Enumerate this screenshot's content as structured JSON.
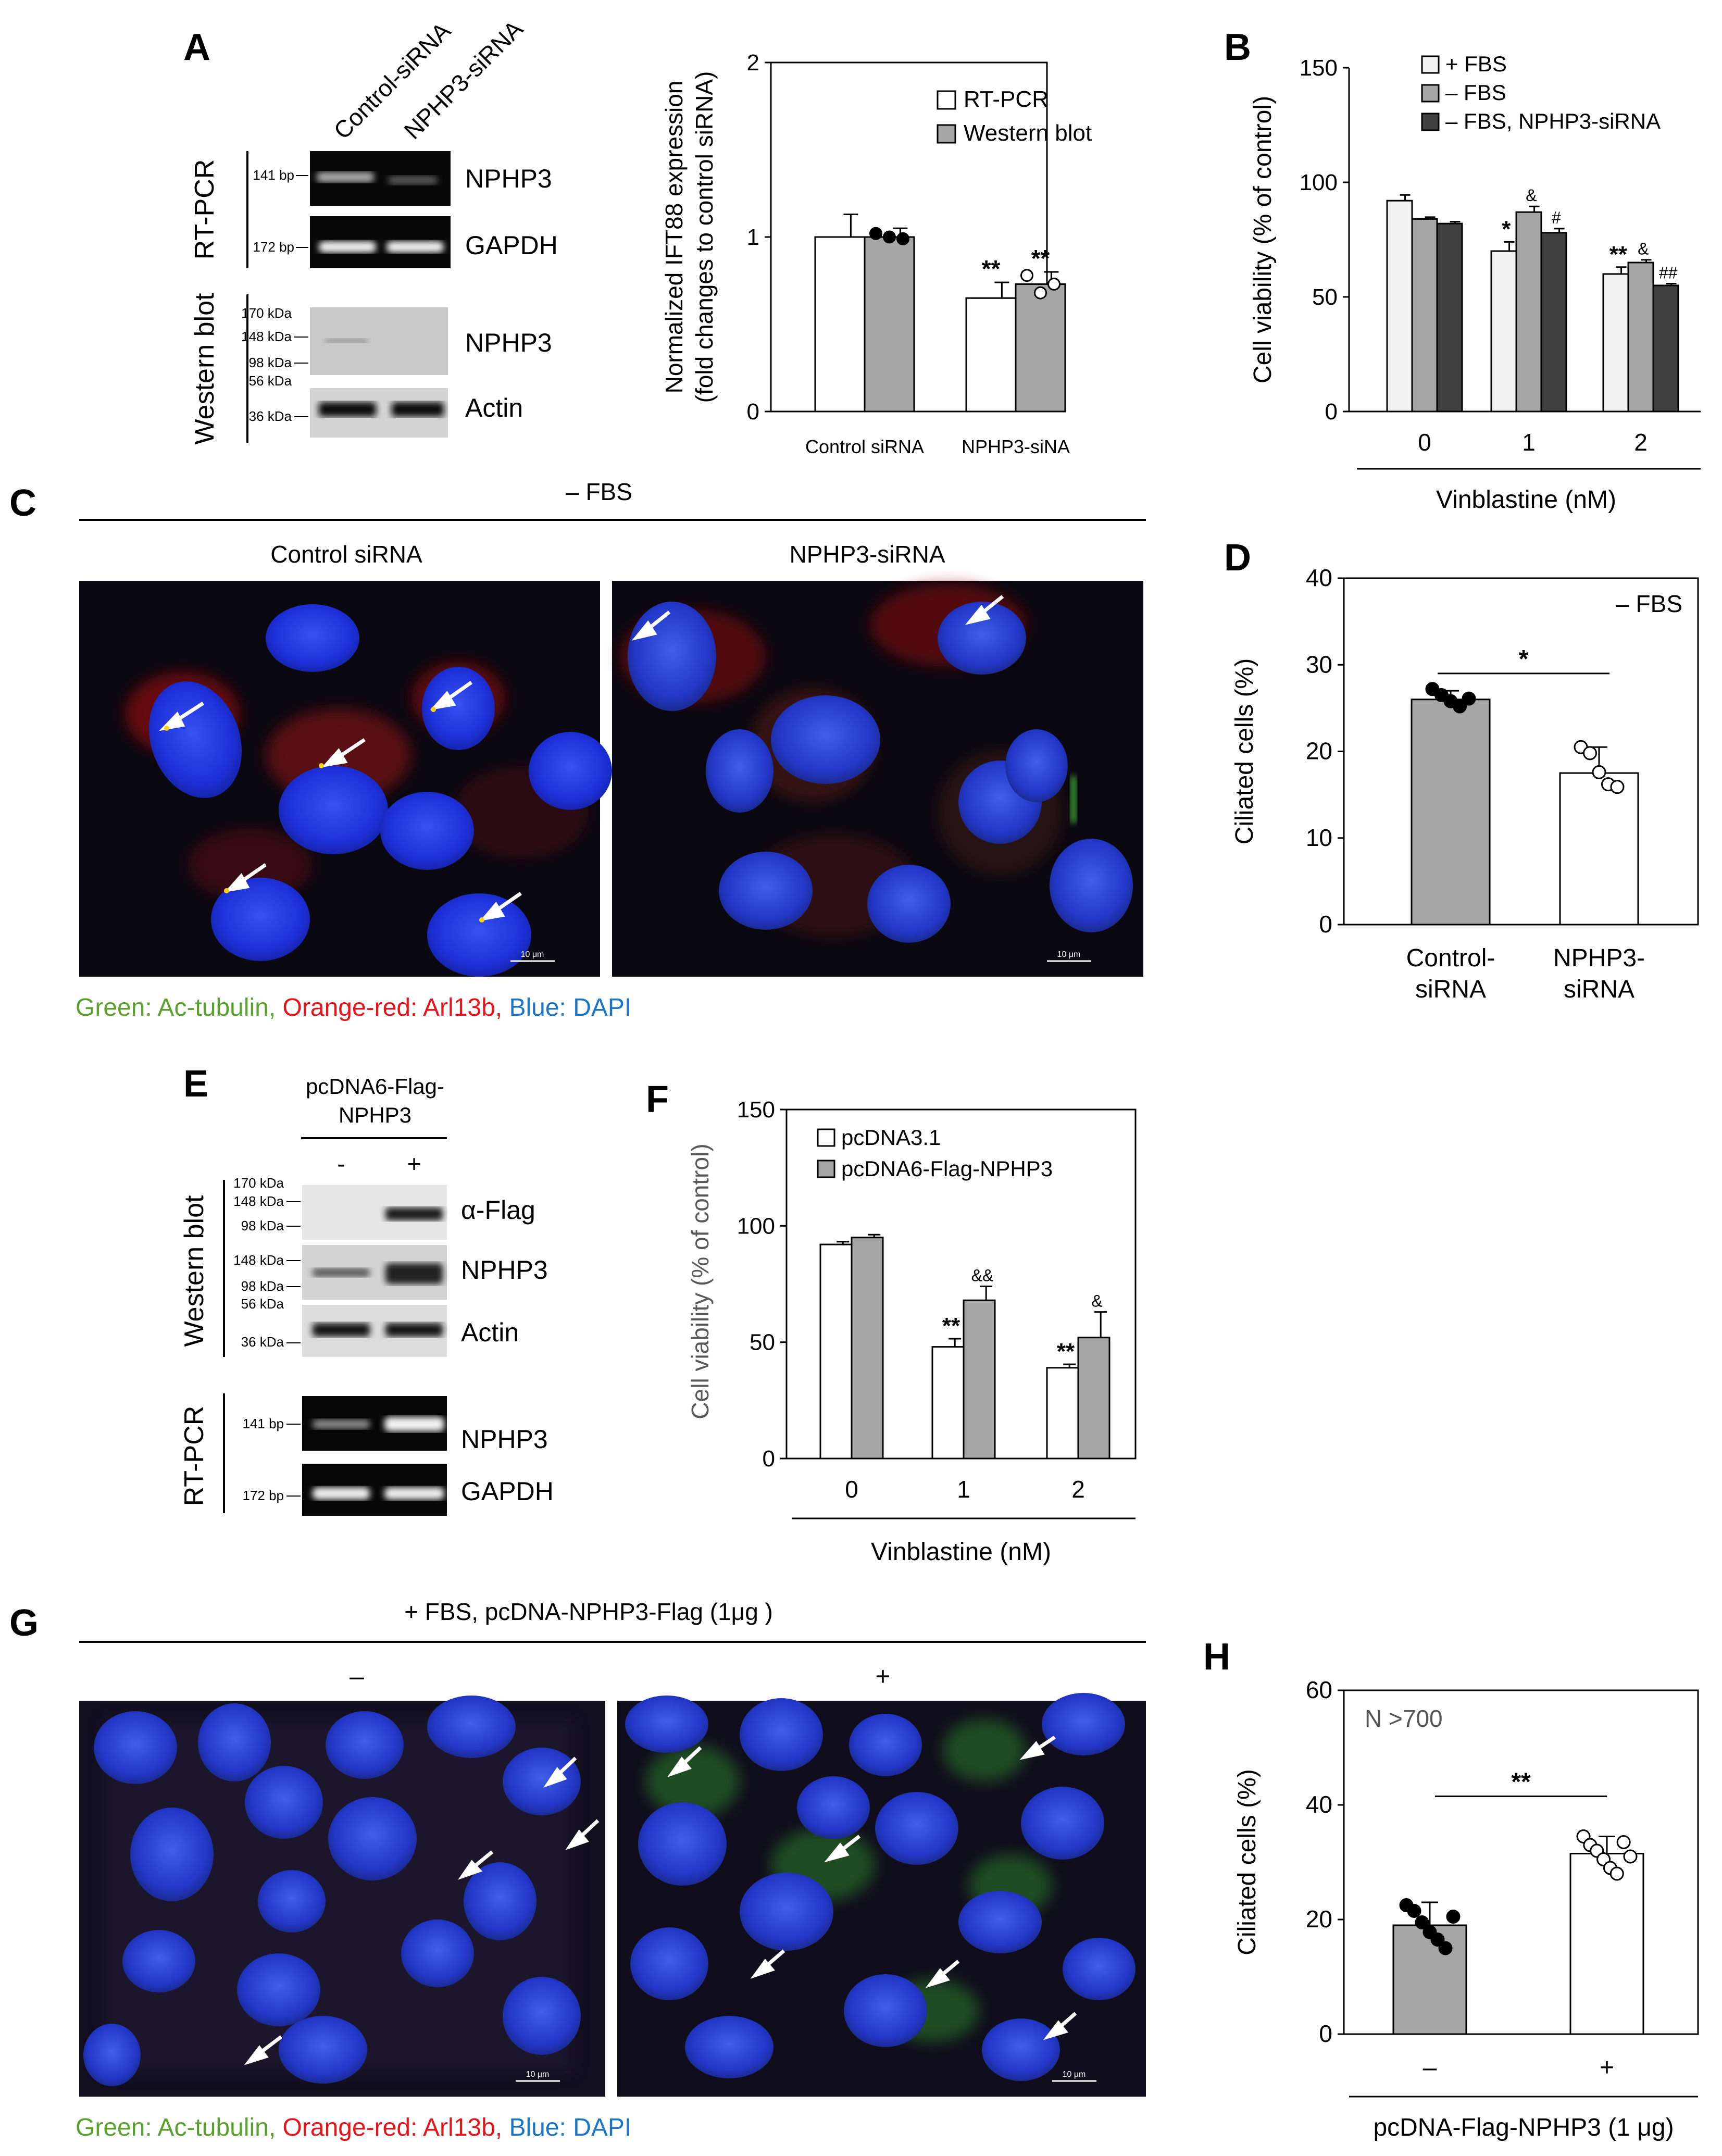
{
  "panels": {
    "A": "A",
    "B": "B",
    "C": "C",
    "D": "D",
    "E": "E",
    "F": "F",
    "G": "G",
    "H": "H"
  },
  "panel_a": {
    "lanes": [
      "Control-siRNA",
      "NPHP3-siRNA"
    ],
    "side_rtpcr": "RT-PCR",
    "side_wb": "Western blot",
    "bands": [
      {
        "marker": "141 bp",
        "name": "NPHP3"
      },
      {
        "marker": "172 bp",
        "name": "GAPDH"
      }
    ],
    "wb_markers_1": [
      "170 kDa",
      "148 kDa",
      "98 kDa"
    ],
    "wb_name_1": "NPHP3",
    "wb_markers_2": [
      "56 kDa",
      "36 kDa"
    ],
    "wb_name_2": "Actin"
  },
  "panel_c": {
    "title": "– FBS",
    "left": "Control siRNA",
    "right": "NPHP3-siRNA",
    "scale": "10 μm",
    "caption": [
      {
        "text": "Green: Ac-tubulin, ",
        "color": "#5aa02c"
      },
      {
        "text": "Orange-red: Arl13b, ",
        "color": "#e8141c"
      },
      {
        "text": "Blue: DAPI",
        "color": "#1a75c8"
      }
    ]
  },
  "panel_e": {
    "construct_l1": "pcDNA6-Flag-",
    "construct_l2": "NPHP3",
    "minus": "-",
    "plus": "+",
    "side_wb": "Western blot",
    "side_rtpcr": "RT-PCR",
    "markers_flag": [
      "170 kDa",
      "148 kDa",
      "98 kDa"
    ],
    "name_flag": "α-Flag",
    "markers_nphp3": [
      "148 kDa",
      "98 kDa"
    ],
    "name_nphp3": "NPHP3",
    "markers_actin": [
      "56 kDa",
      "36 kDa"
    ],
    "name_actin": "Actin",
    "pcr": [
      {
        "marker": "141 bp",
        "name": "NPHP3"
      },
      {
        "marker": "172 bp",
        "name": "GAPDH"
      }
    ]
  },
  "panel_g": {
    "title": "+ FBS, pcDNA-NPHP3-Flag (1μg )",
    "left": "–",
    "right": "+",
    "scale": "10 μm",
    "caption": [
      {
        "text": "Green: Ac-tubulin, ",
        "color": "#5aa02c"
      },
      {
        "text": "Orange-red: Arl13b, ",
        "color": "#e8141c"
      },
      {
        "text": "Blue: DAPI",
        "color": "#1a75c8"
      }
    ]
  },
  "chart_data": [
    {
      "id": "A-chart",
      "type": "bar",
      "categories": [
        "Control siRNA",
        "NPHP3-siNA"
      ],
      "ylabel": [
        "Normalized IFT88 expression",
        "(fold changes to control siRNA)"
      ],
      "ylim": [
        0,
        2
      ],
      "yticks": [
        "0",
        "1",
        "2"
      ],
      "series": [
        {
          "name": "RT-PCR",
          "color": "#ffffff",
          "values": [
            1.0,
            0.65
          ],
          "errors": [
            0.13,
            0.09
          ],
          "marks": [
            "",
            "**"
          ]
        },
        {
          "name": "Western blot",
          "color": "#a6a6a6",
          "values": [
            1.0,
            0.73
          ],
          "errors": [
            0.05,
            0.07
          ],
          "marks": [
            "",
            "**"
          ],
          "points": [
            [
              1.02,
              1.0,
              0.99
            ],
            [
              0.78,
              0.68,
              0.73
            ]
          ]
        }
      ],
      "legend": "top-right"
    },
    {
      "id": "B-chart",
      "type": "bar",
      "categories": [
        "0",
        "1",
        "2"
      ],
      "xlabel": "Vinblastine (nM)",
      "ylabel": "Cell viability (% of control)",
      "ylim": [
        0,
        150
      ],
      "yticks": [
        "0",
        "50",
        "100",
        "150"
      ],
      "series": [
        {
          "name": "+ FBS",
          "color": "#f2f2f2",
          "values": [
            92,
            70,
            60
          ],
          "errors": [
            2.5,
            4,
            3
          ],
          "marks": [
            "",
            "*",
            "**"
          ]
        },
        {
          "name": "– FBS",
          "color": "#a6a6a6",
          "values": [
            84,
            87,
            65
          ],
          "errors": [
            0.8,
            2.5,
            1.2
          ],
          "marks": [
            "",
            "&",
            "&"
          ]
        },
        {
          "name": "– FBS, NPHP3-siRNA",
          "color": "#404040",
          "values": [
            82,
            78,
            55
          ],
          "errors": [
            0.8,
            1.8,
            0.8
          ],
          "marks": [
            "",
            "#",
            "##"
          ]
        }
      ],
      "legend": "top-right"
    },
    {
      "id": "D-chart",
      "type": "bar",
      "categories": [
        "Control-siRNA",
        "NPHP3-siRNA"
      ],
      "ylabel": "Ciliated cells (%)",
      "ylim": [
        0,
        40
      ],
      "yticks": [
        "0",
        "10",
        "20",
        "30",
        "40"
      ],
      "annotation": "– FBS",
      "significance": "*",
      "series": [
        {
          "colors": [
            "#a6a6a6",
            "#ffffff"
          ],
          "values": [
            26,
            17.5
          ],
          "errors": [
            1.0,
            3.0
          ],
          "points": [
            [
              27.2,
              26.5,
              25.8,
              25.2,
              26.1
            ],
            [
              20.5,
              19.8,
              17.6,
              16.2,
              15.9
            ]
          ],
          "point_fill": [
            "#000000",
            "#ffffff"
          ]
        }
      ]
    },
    {
      "id": "F-chart",
      "type": "bar",
      "categories": [
        "0",
        "1",
        "2"
      ],
      "xlabel": "Vinblastine (nM)",
      "ylabel": "Cell viability (% of control)",
      "ylim": [
        0,
        150
      ],
      "yticks": [
        "0",
        "50",
        "100",
        "150"
      ],
      "series": [
        {
          "name": "pcDNA3.1",
          "color": "#ffffff",
          "values": [
            92,
            48,
            39
          ],
          "errors": [
            1.2,
            3.5,
            1.5
          ],
          "marks": [
            "",
            "**",
            "**"
          ]
        },
        {
          "name": "pcDNA6-Flag-NPHP3",
          "color": "#a6a6a6",
          "values": [
            95,
            68,
            52
          ],
          "errors": [
            1.2,
            6,
            11
          ],
          "marks": [
            "",
            "&&",
            "&"
          ]
        }
      ],
      "legend": "top-left"
    },
    {
      "id": "H-chart",
      "type": "bar",
      "categories": [
        "–",
        "+"
      ],
      "xlabel": "pcDNA-Flag-NPHP3 (1 μg)",
      "ylabel": "Ciliated cells (%)",
      "ylim": [
        0,
        60
      ],
      "yticks": [
        "0",
        "20",
        "40",
        "60"
      ],
      "annotation": "N >700",
      "significance": "**",
      "series": [
        {
          "colors": [
            "#a6a6a6",
            "#ffffff"
          ],
          "values": [
            19,
            31.5
          ],
          "errors": [
            4,
            3
          ],
          "points": [
            [
              22.5,
              21.5,
              19.5,
              17.8,
              16.5,
              15.0,
              20.5
            ],
            [
              34.5,
              33.0,
              32.0,
              30.5,
              29.0,
              28.0,
              33.5,
              31.0
            ]
          ],
          "point_fill": [
            "#000000",
            "#ffffff"
          ]
        }
      ]
    }
  ]
}
